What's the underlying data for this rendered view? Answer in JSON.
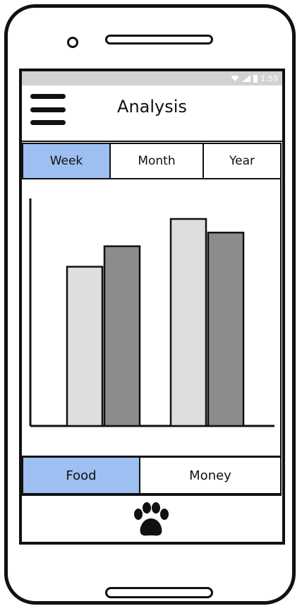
{
  "status_bar": {
    "time": "1:59"
  },
  "header": {
    "title": "Analysis",
    "menu_icon": "hamburger-menu-icon"
  },
  "period_tabs": [
    {
      "label": "Week",
      "active": true
    },
    {
      "label": "Month",
      "active": false
    },
    {
      "label": "Year",
      "active": false
    }
  ],
  "category_tabs": [
    {
      "label": "Food",
      "active": true
    },
    {
      "label": "Money",
      "active": false
    }
  ],
  "bottom_nav": {
    "icon": "paw-icon"
  },
  "colors": {
    "active_tab": "#9dbff2",
    "bar_light": "#dedede",
    "bar_dark": "#8c8c8c",
    "status_bar": "#d2d2d2"
  },
  "chart_data": {
    "type": "bar",
    "categories": [
      "",
      ""
    ],
    "series": [
      {
        "values": [
          70,
          91
        ]
      },
      {
        "values": [
          79,
          85
        ]
      }
    ],
    "ylim": [
      0,
      100
    ],
    "grid": false,
    "title": "",
    "xlabel": "",
    "ylabel": ""
  }
}
